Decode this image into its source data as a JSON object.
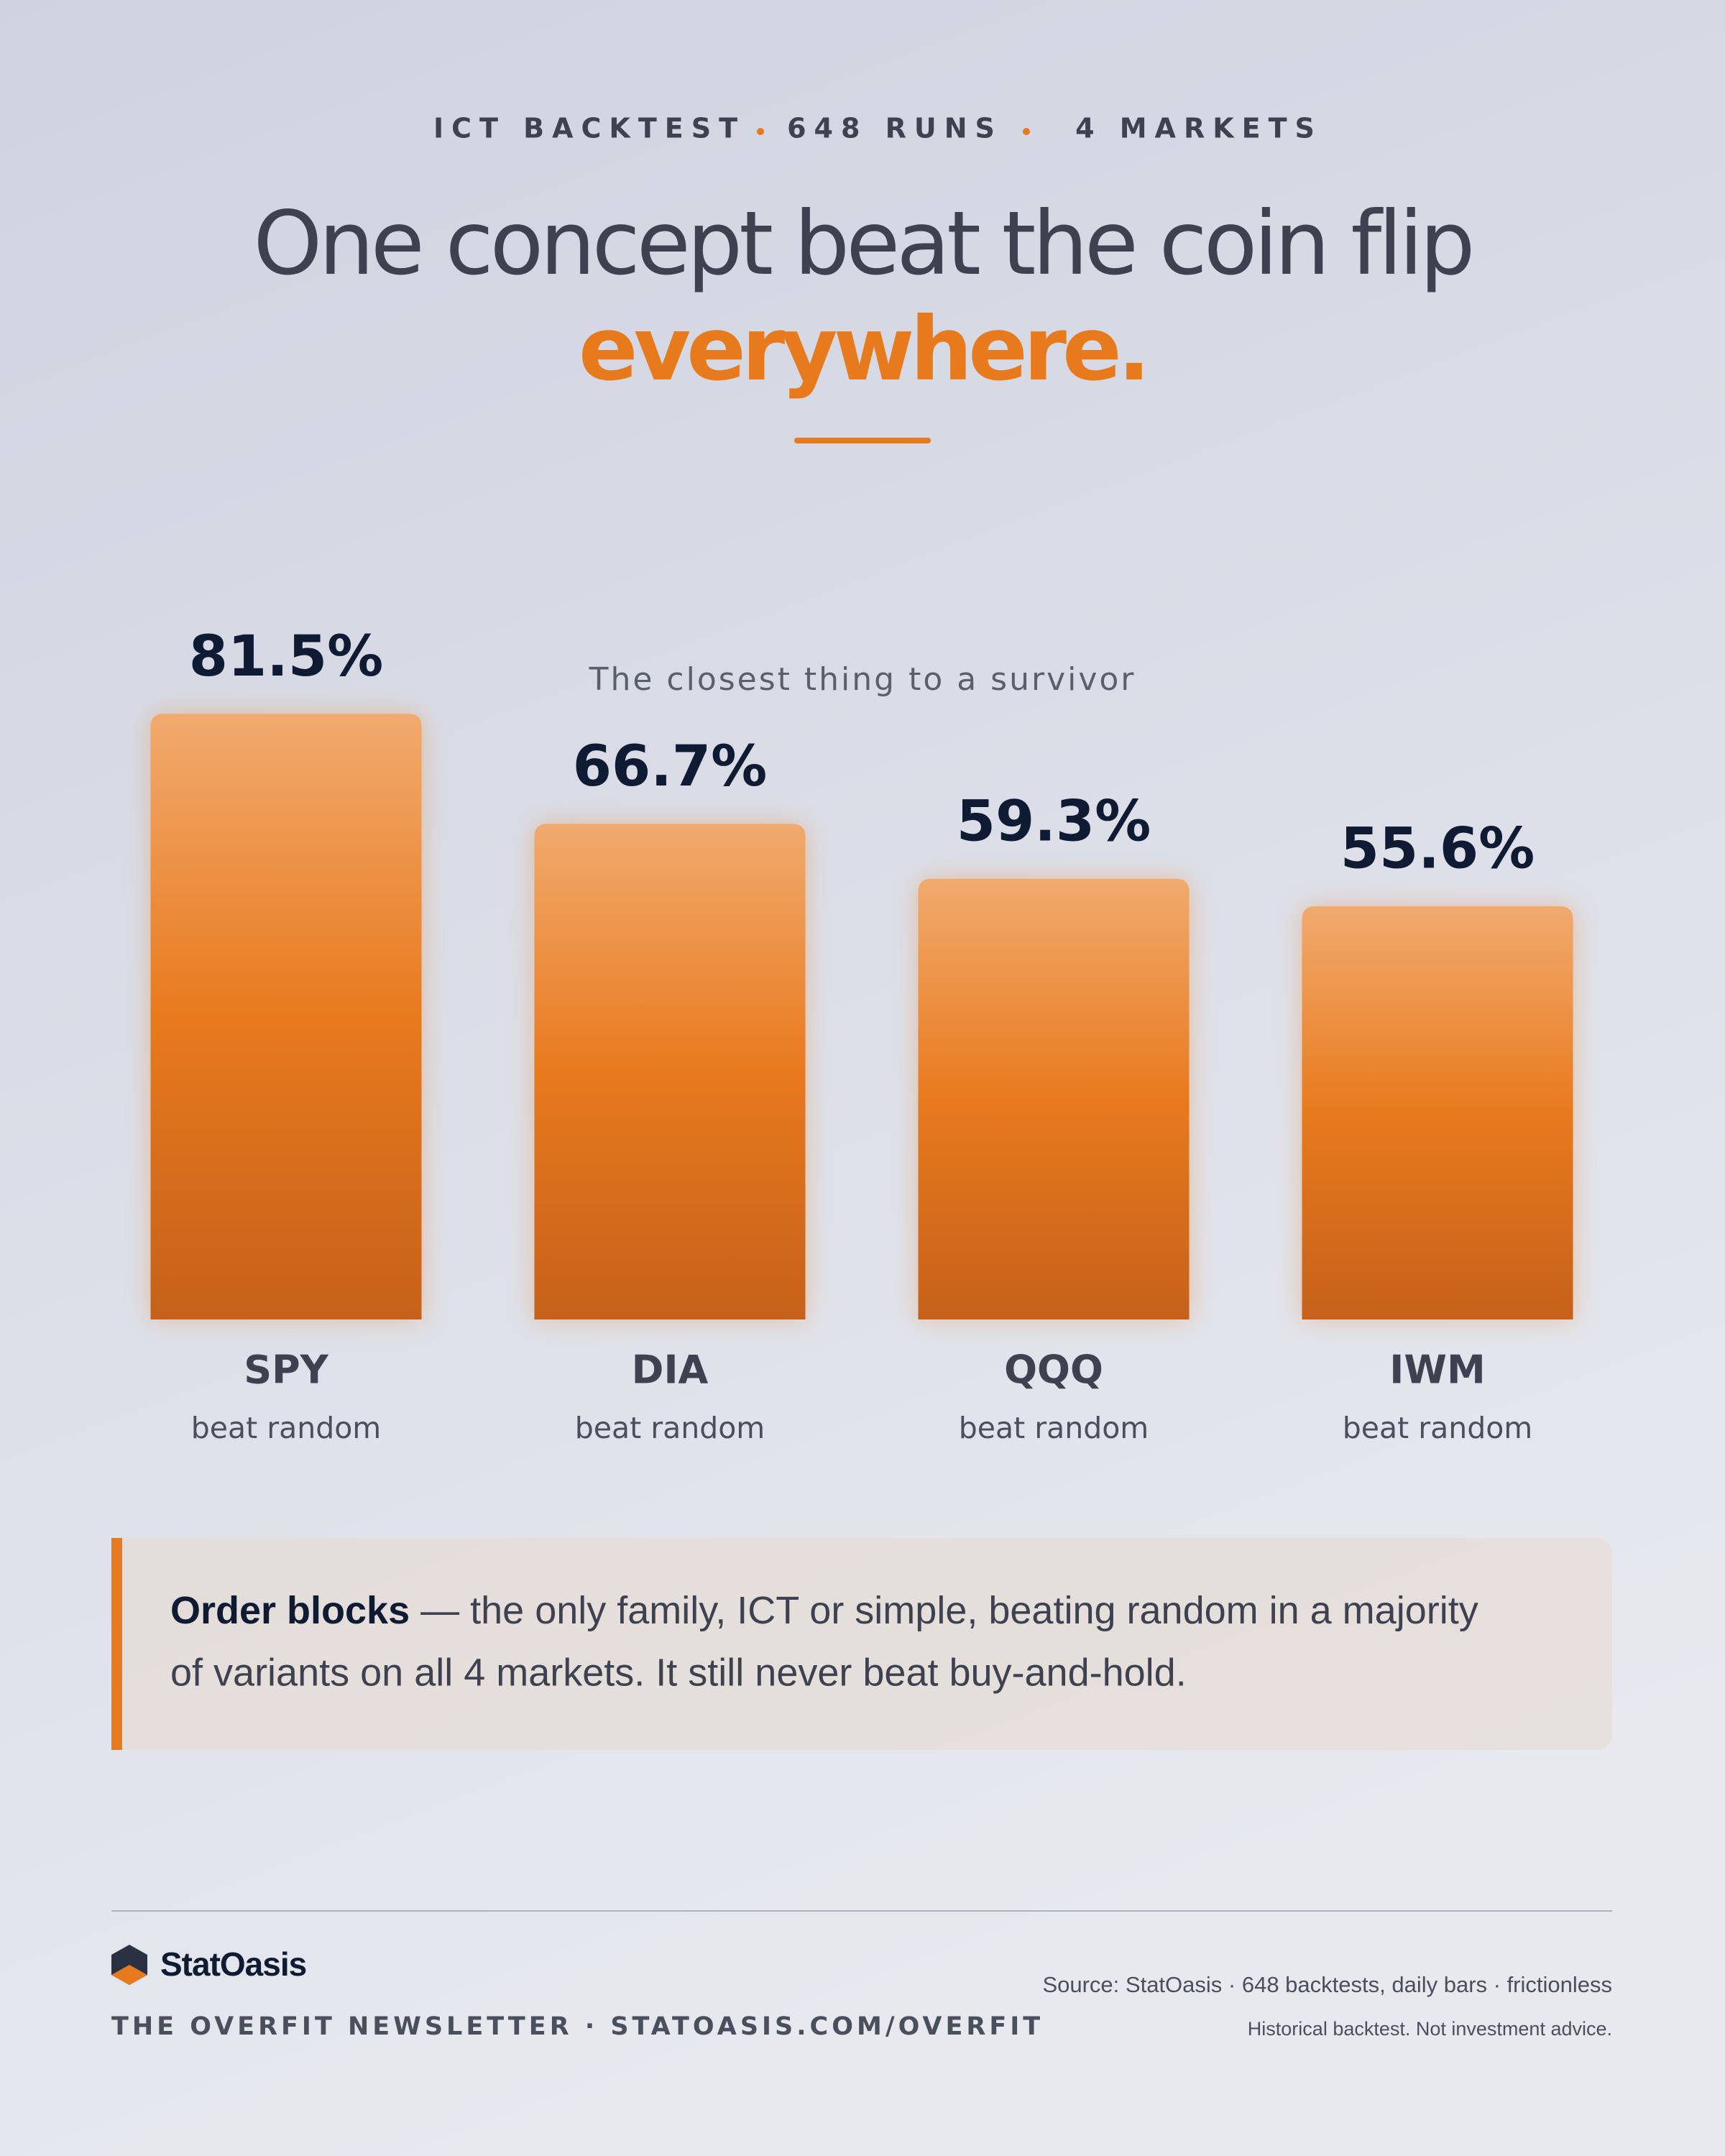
{
  "chart_data": {
    "type": "bar",
    "kicker": [
      "ICT BACKTEST",
      "648 RUNS",
      "4 MARKETS"
    ],
    "title": "One concept beat the coin flip",
    "title_highlight": "everywhere.",
    "subtitle": "The closest thing to a survivor",
    "categories": [
      "SPY",
      "DIA",
      "QQQ",
      "IWM"
    ],
    "sublabels": [
      "beat random",
      "beat random",
      "beat random",
      "beat random"
    ],
    "values": [
      81.5,
      66.7,
      59.3,
      55.6
    ],
    "value_labels": [
      "81.5%",
      "66.7%",
      "59.3%",
      "55.6%"
    ],
    "color": "#e87a1e",
    "ylim": [
      0,
      100
    ]
  },
  "note": {
    "lead": "Order blocks",
    "line1": " — the only family, ICT or simple, beating random in a majority",
    "line2": "of variants on all 4 markets. It still never beat buy-and-hold."
  },
  "footer": {
    "brand": "StatOasis",
    "newsletter": "THE OVERFIT NEWSLETTER · STATOASIS.COM/OVERFIT",
    "source": "Source: StatOasis · 648 backtests, daily bars · frictionless",
    "disclaimer": "Historical backtest. Not investment advice."
  }
}
